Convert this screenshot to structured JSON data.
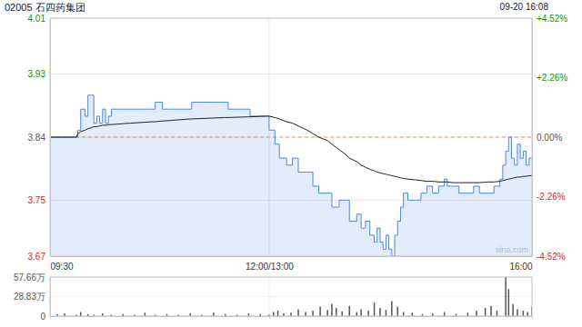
{
  "chart_data": [
    {
      "type": "line",
      "title": "02005 石四药集团",
      "subtitle": "09-20 16:08",
      "annotations": [
        "sina.com"
      ],
      "prev_close": 3.84,
      "grid": true,
      "x": [
        0,
        18,
        19,
        20,
        21,
        24,
        26,
        29,
        30,
        32,
        34,
        36,
        38,
        40,
        42,
        55,
        70,
        72,
        76,
        77,
        96,
        97,
        120,
        122,
        136,
        137,
        148,
        150,
        154,
        157,
        162,
        166,
        170,
        176,
        180,
        184,
        190,
        193,
        198,
        202,
        205,
        210,
        213,
        216,
        219,
        222,
        224,
        226,
        228,
        230,
        232,
        234,
        236,
        238,
        240,
        242,
        245,
        250,
        254,
        258,
        262,
        266,
        270,
        272,
        276,
        280,
        286,
        290,
        294,
        300,
        304,
        308,
        310,
        312,
        314,
        316,
        318,
        320,
        322,
        324,
        326,
        328,
        330
      ],
      "xlim": [
        0,
        330
      ],
      "xticks": [
        {
          "value": 0,
          "label": "09:30"
        },
        {
          "value": 150,
          "label": "12:00/13:00"
        },
        {
          "value": 330,
          "label": "16:00"
        }
      ],
      "ylim": [
        3.67,
        4.01
      ],
      "yticks": [
        4.01,
        3.93,
        3.84,
        3.75,
        3.67
      ],
      "y2lim": [
        -4.52,
        4.52
      ],
      "y2ticks": [
        {
          "value": 4.52,
          "label": "+4.52%"
        },
        {
          "value": 2.26,
          "label": "+2.26%"
        },
        {
          "value": 0,
          "label": "0.00%"
        },
        {
          "value": -2.26,
          "label": "-2.26%"
        },
        {
          "value": -4.52,
          "label": "-4.52%"
        }
      ],
      "series": [
        {
          "type": "area",
          "color": "#4a86e8",
          "line_style": "step",
          "values": [
            3.84,
            3.84,
            3.85,
            3.85,
            3.88,
            3.87,
            3.9,
            3.9,
            3.86,
            3.87,
            3.86,
            3.88,
            3.86,
            3.87,
            3.88,
            3.88,
            3.88,
            3.89,
            3.89,
            3.88,
            3.88,
            3.89,
            3.89,
            3.88,
            3.88,
            3.87,
            3.87,
            3.85,
            3.83,
            3.81,
            3.8,
            3.81,
            3.79,
            3.79,
            3.77,
            3.76,
            3.76,
            3.74,
            3.75,
            3.75,
            3.72,
            3.73,
            3.71,
            3.72,
            3.7,
            3.69,
            3.71,
            3.69,
            3.68,
            3.7,
            3.68,
            3.67,
            3.7,
            3.72,
            3.74,
            3.76,
            3.75,
            3.75,
            3.76,
            3.77,
            3.76,
            3.77,
            3.78,
            3.77,
            3.77,
            3.76,
            3.76,
            3.77,
            3.76,
            3.76,
            3.77,
            3.78,
            3.8,
            3.82,
            3.84,
            3.81,
            3.8,
            3.83,
            3.81,
            3.82,
            3.8,
            3.81,
            3.81
          ]
        },
        {
          "type": "line",
          "color": "#222222",
          "line_style": "solid",
          "values": [
            3.84,
            3.84,
            3.845,
            3.846,
            3.848,
            3.85,
            3.852,
            3.854,
            3.855,
            3.855,
            3.856,
            3.857,
            3.857,
            3.858,
            3.858,
            3.86,
            3.862,
            3.862,
            3.863,
            3.863,
            3.866,
            3.866,
            3.868,
            3.868,
            3.869,
            3.869,
            3.87,
            3.87,
            3.868,
            3.866,
            3.862,
            3.86,
            3.856,
            3.85,
            3.845,
            3.84,
            3.835,
            3.83,
            3.822,
            3.816,
            3.81,
            3.805,
            3.8,
            3.797,
            3.794,
            3.792,
            3.79,
            3.789,
            3.788,
            3.787,
            3.786,
            3.785,
            3.784,
            3.783,
            3.782,
            3.781,
            3.78,
            3.779,
            3.778,
            3.777,
            3.777,
            3.776,
            3.776,
            3.776,
            3.775,
            3.775,
            3.775,
            3.775,
            3.775,
            3.776,
            3.776,
            3.777,
            3.778,
            3.779,
            3.78,
            3.781,
            3.782,
            3.783,
            3.783,
            3.784,
            3.784,
            3.785,
            3.785
          ]
        }
      ]
    },
    {
      "type": "bar",
      "color": "#555555",
      "grid": true,
      "tick_labels": "y",
      "x": [
        0,
        5,
        10,
        18,
        21,
        26,
        30,
        36,
        42,
        50,
        58,
        65,
        72,
        80,
        88,
        96,
        104,
        112,
        120,
        128,
        136,
        144,
        150,
        153,
        156,
        160,
        165,
        170,
        175,
        180,
        185,
        190,
        193,
        196,
        200,
        205,
        210,
        213,
        218,
        222,
        226,
        230,
        234,
        238,
        242,
        248,
        255,
        262,
        270,
        278,
        286,
        292,
        298,
        302,
        306,
        312,
        314,
        317,
        320,
        324,
        327,
        330
      ],
      "values": [
        8,
        3,
        4,
        2,
        6,
        3,
        2,
        4,
        2,
        3,
        2,
        5,
        2,
        3,
        2,
        4,
        2,
        5,
        3,
        2,
        4,
        3,
        2,
        6,
        8,
        4,
        5,
        10,
        6,
        8,
        14,
        9,
        18,
        12,
        7,
        15,
        6,
        10,
        8,
        20,
        12,
        9,
        22,
        14,
        6,
        5,
        3,
        4,
        6,
        3,
        5,
        8,
        12,
        15,
        8,
        57.66,
        40,
        18,
        10,
        8,
        6,
        14
      ],
      "xlim": [
        0,
        330
      ],
      "xticks": [
        0,
        150,
        330
      ],
      "ylim": [
        0,
        57.66
      ],
      "yticks": [
        {
          "value": 57.66,
          "label": "57.66万"
        },
        {
          "value": 28.83,
          "label": "28.83万"
        },
        0
      ]
    }
  ]
}
